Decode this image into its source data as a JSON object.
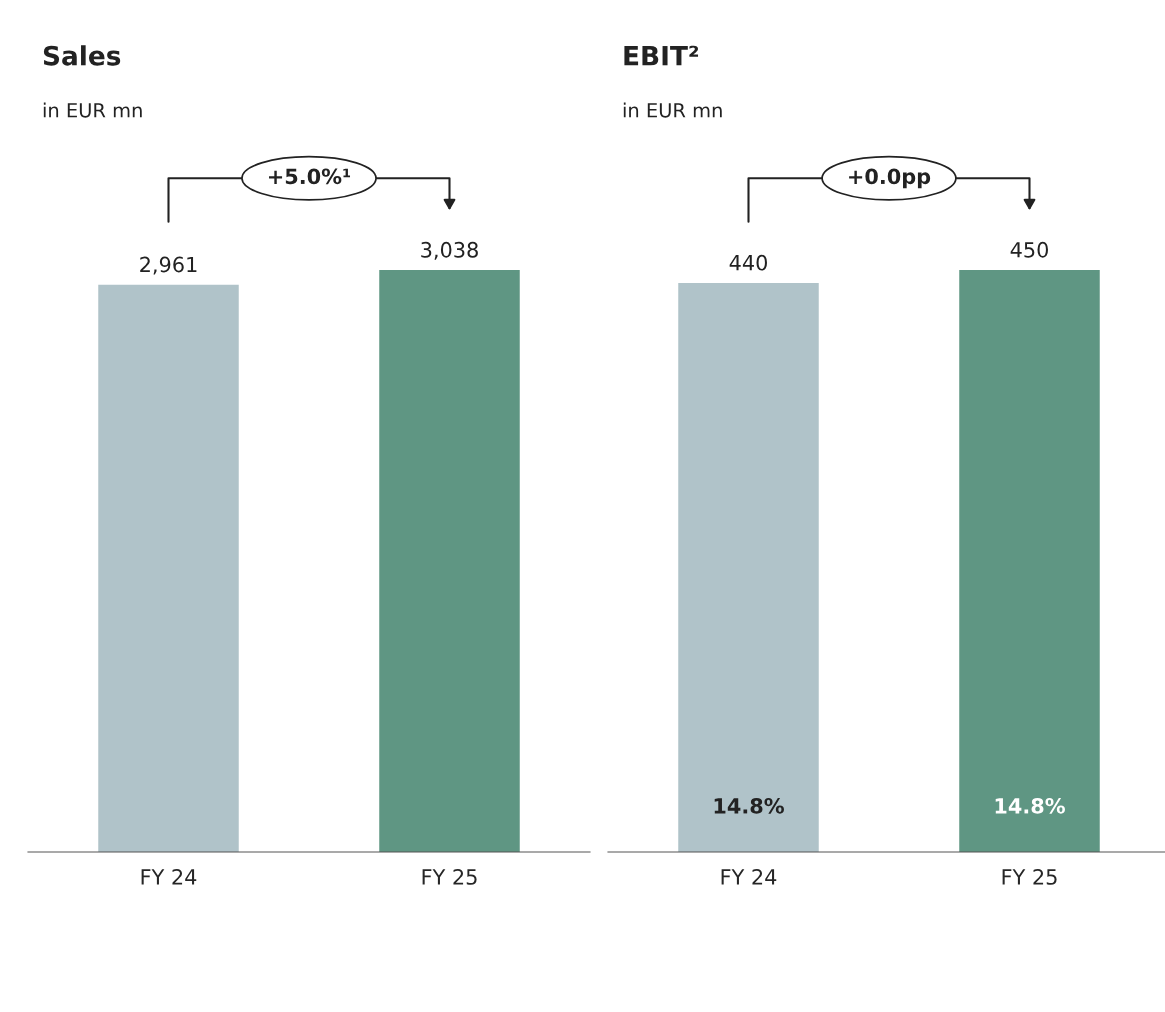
{
  "chart_data": [
    {
      "type": "bar",
      "title": "Sales",
      "subtitle": "in EUR mn",
      "categories": [
        "FY 24",
        "FY 25"
      ],
      "values": [
        2961,
        3038
      ],
      "colors": [
        "#b0c3c9",
        "#5f9683"
      ],
      "data_labels": true,
      "value_labels": [
        "2,961",
        "3,038"
      ],
      "annotations": [
        "+5.0%¹"
      ]
    },
    {
      "type": "bar",
      "title": "EBIT²",
      "subtitle": "in EUR mn",
      "categories": [
        "FY 24",
        "FY 25"
      ],
      "values": [
        440,
        450
      ],
      "colors": [
        "#b0c3c9",
        "#5f9683"
      ],
      "data_labels": true,
      "annotations": [
        "+0.0pp",
        "14.8%",
        "14.8%"
      ]
    }
  ]
}
